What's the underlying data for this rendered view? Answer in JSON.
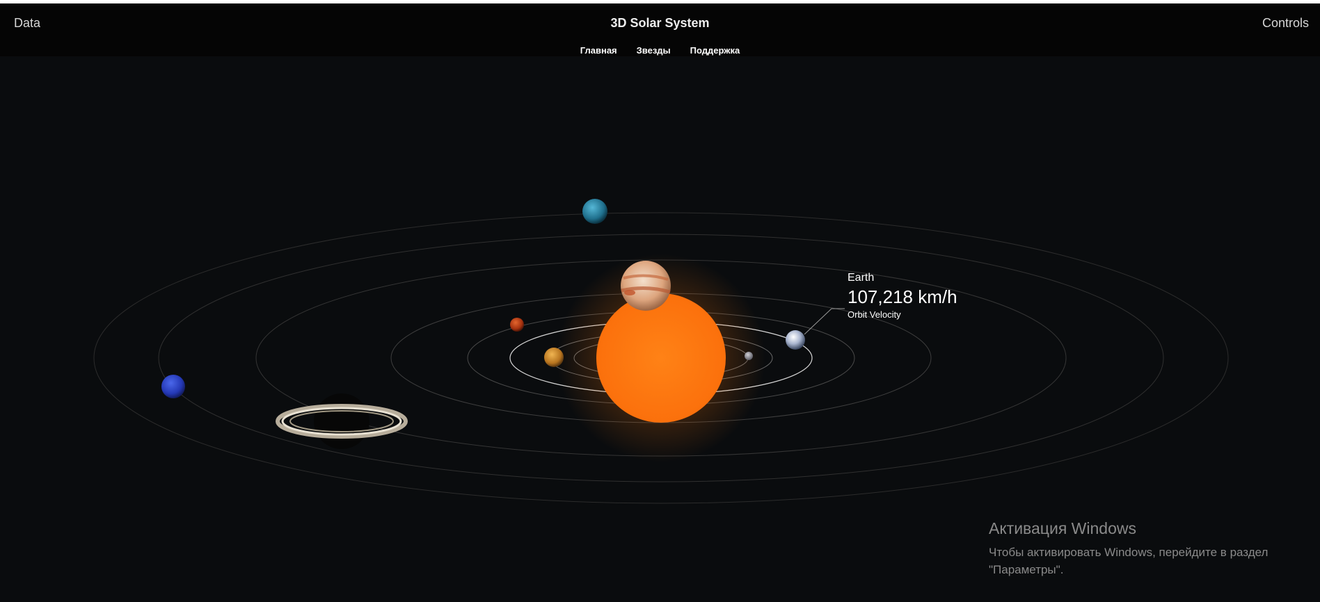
{
  "header": {
    "left_link": "Data",
    "title": "3D Solar System",
    "right_link": "Controls"
  },
  "menu": [
    "Главная",
    "Звезды",
    "Поддержка"
  ],
  "selected_planet": {
    "name": "Earth",
    "velocity": "107,218 km/h",
    "metric_label": "Orbit Velocity"
  },
  "bodies": [
    {
      "name": "Sun",
      "color": "#ff7a0f"
    },
    {
      "name": "Mercury",
      "color": "#9a9aa2"
    },
    {
      "name": "Venus",
      "color": "#c9892c"
    },
    {
      "name": "Earth",
      "color": "#b8c4dc"
    },
    {
      "name": "Mars",
      "color": "#c2461a"
    },
    {
      "name": "Jupiter",
      "color": "#e3b28b"
    },
    {
      "name": "Saturn",
      "color": "#c8bfae"
    },
    {
      "name": "Uranus",
      "color": "#2f93b5"
    },
    {
      "name": "Neptune",
      "color": "#2a44c9"
    }
  ],
  "activation": {
    "title": "Активация Windows",
    "line1": "Чтобы активировать Windows, перейдите в раздел",
    "line2": "\"Параметры\"."
  }
}
